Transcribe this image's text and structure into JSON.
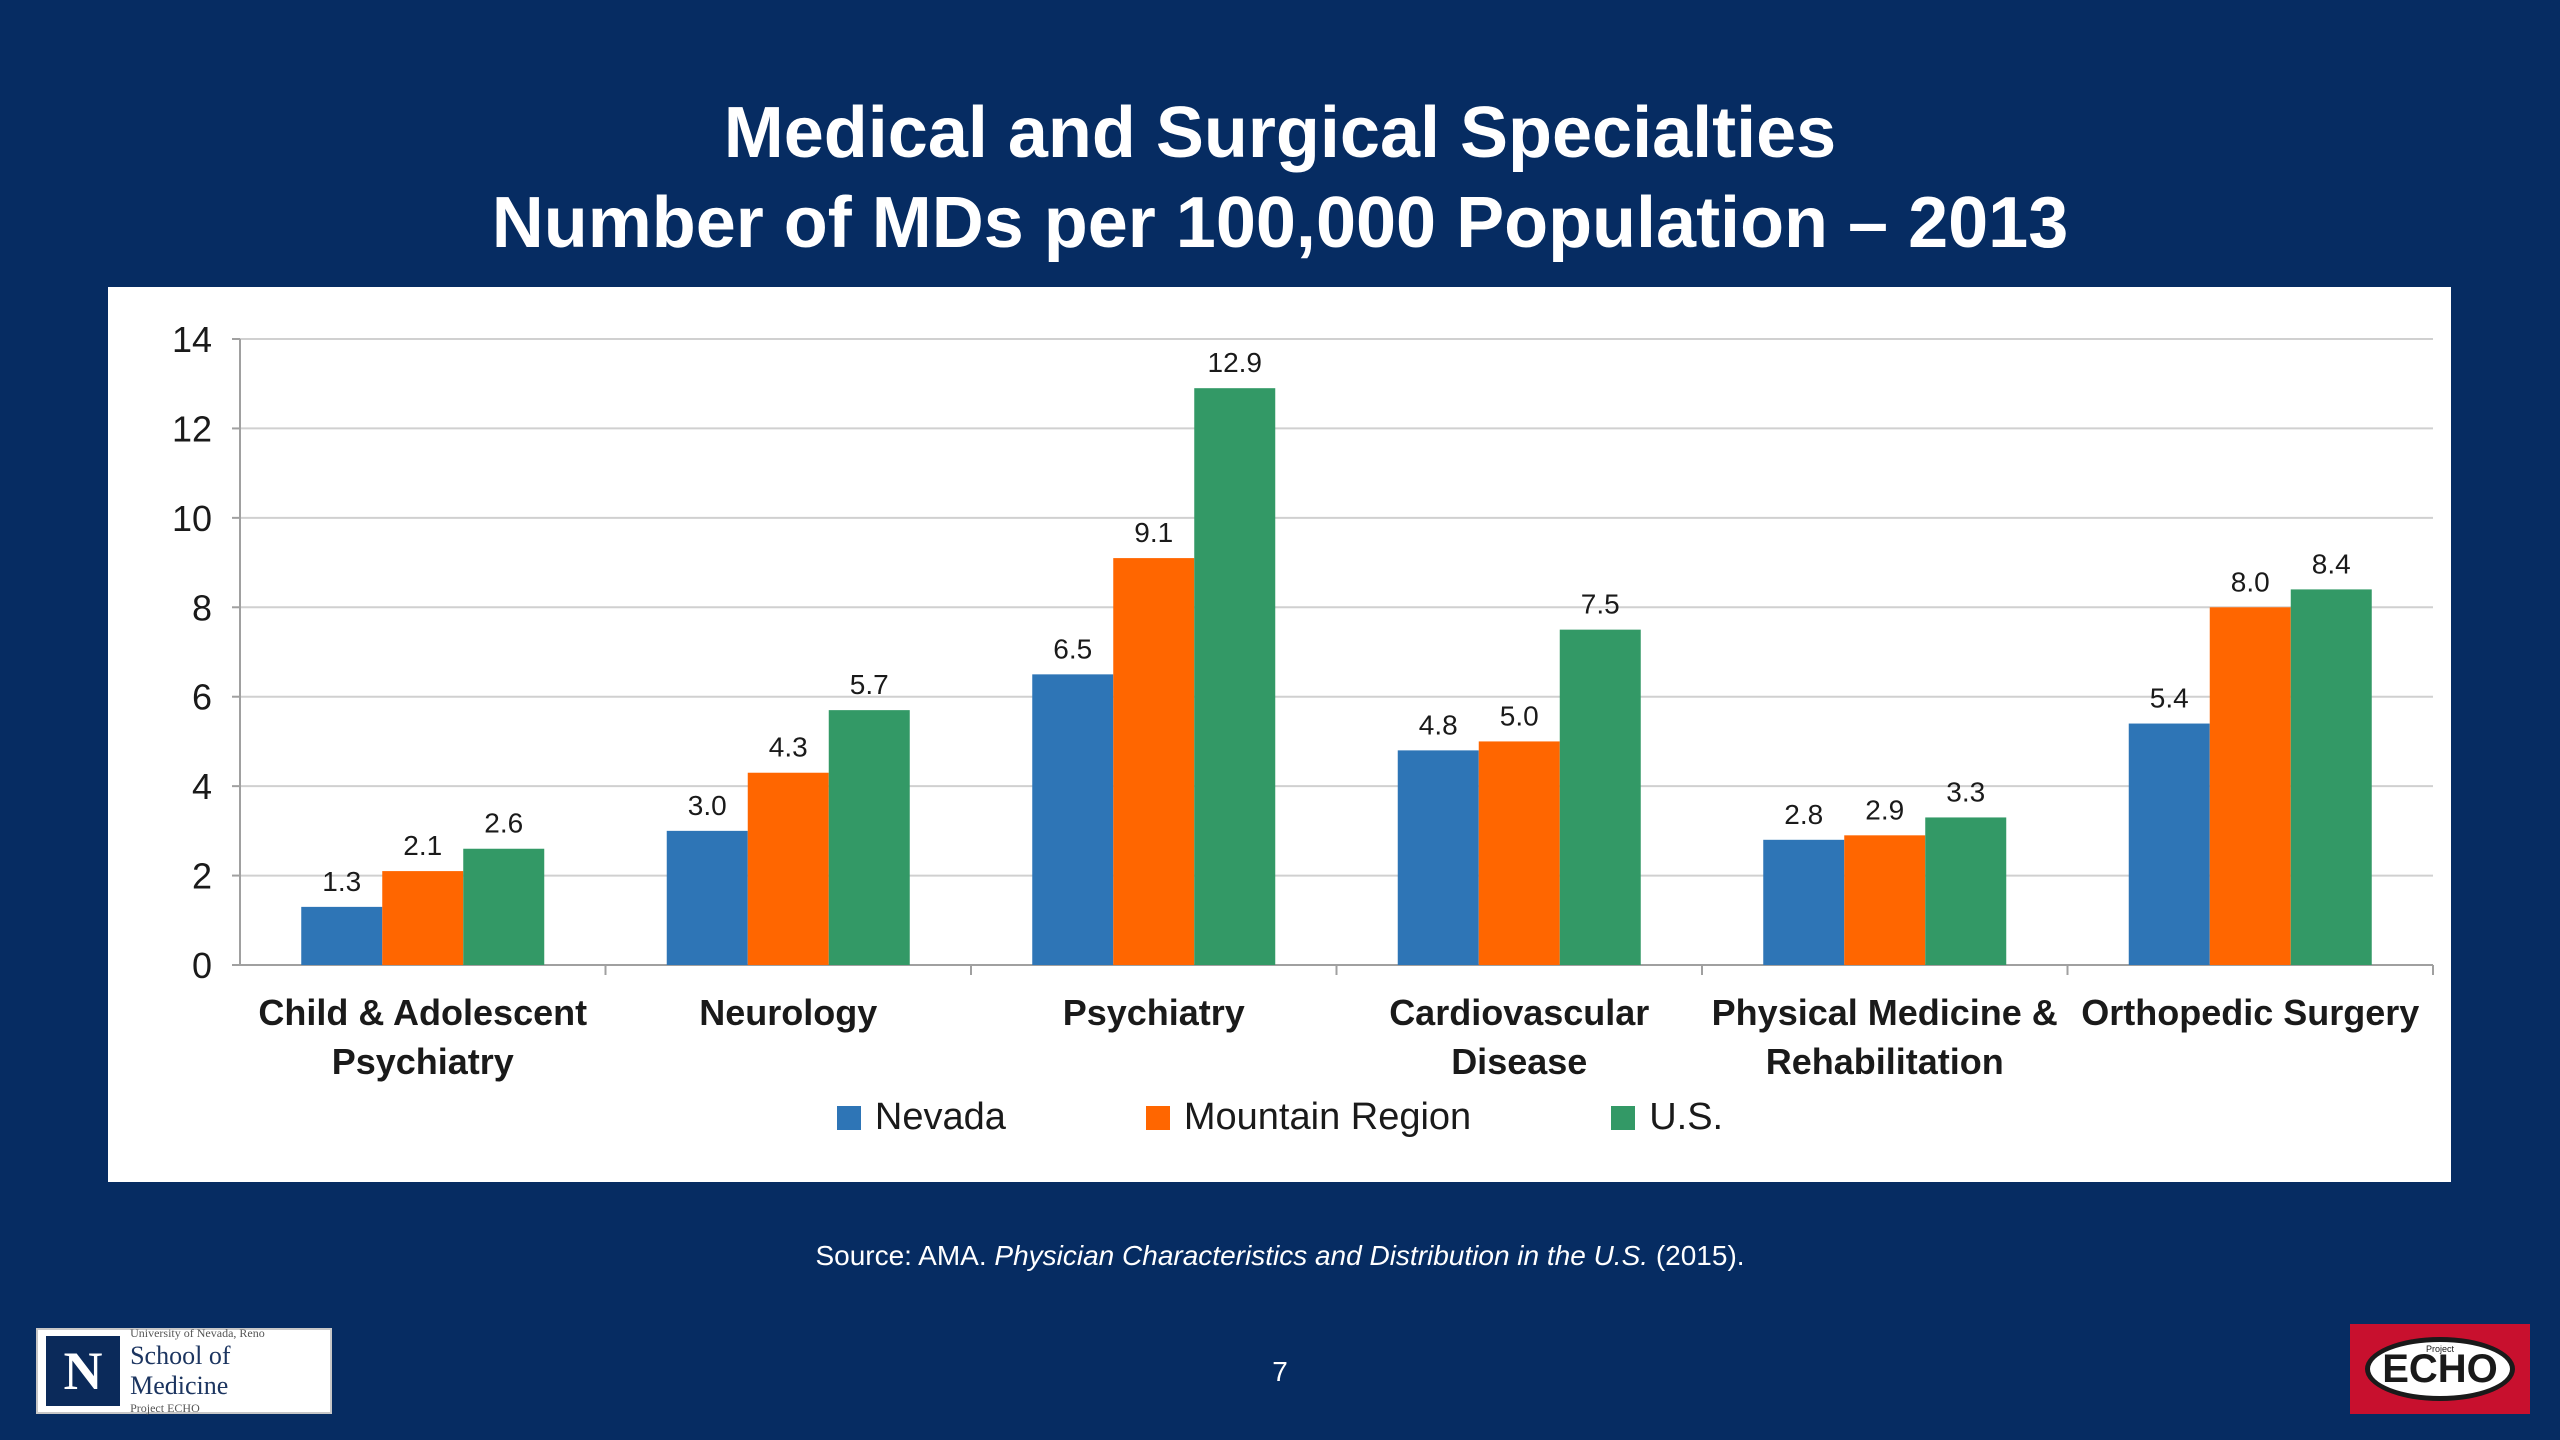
{
  "slide": {
    "title_line1": "Medical and Surgical Specialties",
    "title_line2": "Number of MDs per 100,000 Population – 2013",
    "source_prefix": "Source: AMA. ",
    "source_title": "Physician Characteristics and Distribution in the U.S.",
    "source_suffix": " (2015).",
    "page_number": "7",
    "logo_left_small": "University of Nevada, Reno",
    "logo_left_main": "School of Medicine",
    "logo_left_sub": "Project ECHO",
    "logo_left_mark": "N",
    "logo_right_main": "ECHO",
    "logo_right_small": "Project",
    "background_color": "#062c62"
  },
  "chart_data": {
    "type": "bar",
    "title": "",
    "xlabel": "",
    "ylabel": "",
    "ylim": [
      0,
      14
    ],
    "yticks": [
      0,
      2,
      4,
      6,
      8,
      10,
      12,
      14
    ],
    "ytick_labels": [
      "0",
      "2",
      "4",
      "6",
      "8",
      "10",
      "12",
      "14"
    ],
    "grid": true,
    "legend_position": "bottom",
    "categories": [
      [
        "Child & Adolescent",
        "Psychiatry"
      ],
      [
        "Neurology"
      ],
      [
        "Psychiatry"
      ],
      [
        "Cardiovascular",
        "Disease"
      ],
      [
        "Physical Medicine &",
        "Rehabilitation"
      ],
      [
        "Orthopedic Surgery"
      ]
    ],
    "series": [
      {
        "name": "Nevada",
        "color": "#2e75b6",
        "values": [
          1.3,
          3.0,
          6.5,
          4.8,
          2.8,
          5.4
        ],
        "labels": [
          "1.3",
          "3.0",
          "6.5",
          "4.8",
          "2.8",
          "5.4"
        ]
      },
      {
        "name": "Mountain Region",
        "color": "#ff6600",
        "values": [
          2.1,
          4.3,
          9.1,
          5.0,
          2.9,
          8.0
        ],
        "labels": [
          "2.1",
          "4.3",
          "9.1",
          "5.0",
          "2.9",
          "8.0"
        ]
      },
      {
        "name": "U.S.",
        "color": "#339966",
        "values": [
          2.6,
          5.7,
          12.9,
          7.5,
          3.3,
          8.4
        ],
        "labels": [
          "2.6",
          "5.7",
          "12.9",
          "7.5",
          "3.3",
          "8.4"
        ]
      }
    ]
  }
}
